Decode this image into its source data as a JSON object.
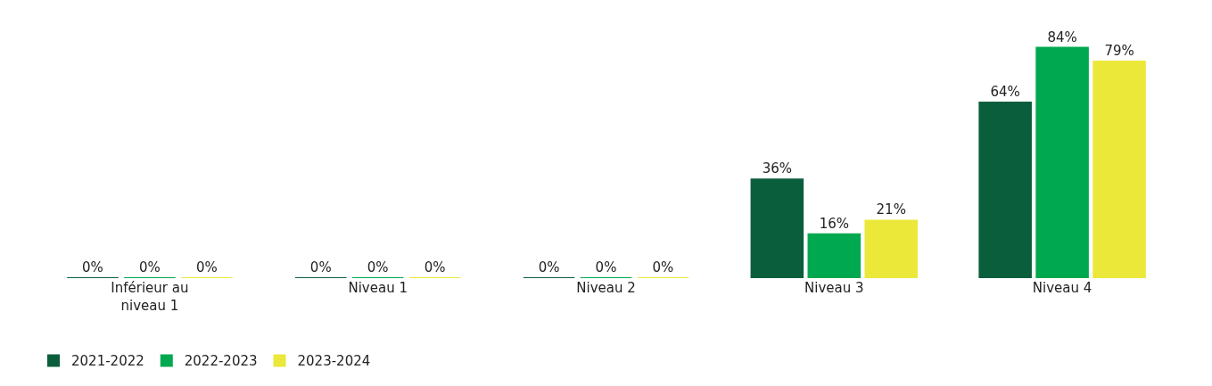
{
  "chart_data": {
    "type": "bar",
    "categories": [
      "Inférieur au\nniveau 1",
      "Niveau 1",
      "Niveau 2",
      "Niveau 3",
      "Niveau 4"
    ],
    "series": [
      {
        "name": "2021-2022",
        "color": "#0b5e3c",
        "values": [
          0,
          0,
          0,
          36,
          64
        ],
        "value_labels": [
          "0%",
          "0%",
          "0%",
          "36%",
          "64%"
        ]
      },
      {
        "name": "2022-2023",
        "color": "#00a84f",
        "values": [
          0,
          0,
          0,
          16,
          84
        ],
        "value_labels": [
          "0%",
          "0%",
          "0%",
          "16%",
          "84%"
        ]
      },
      {
        "name": "2023-2024",
        "color": "#ebe83a",
        "values": [
          0,
          0,
          0,
          21,
          79
        ],
        "value_labels": [
          "0%",
          "0%",
          "0%",
          "21%",
          "79%"
        ]
      }
    ],
    "legend": "bottom left"
  }
}
